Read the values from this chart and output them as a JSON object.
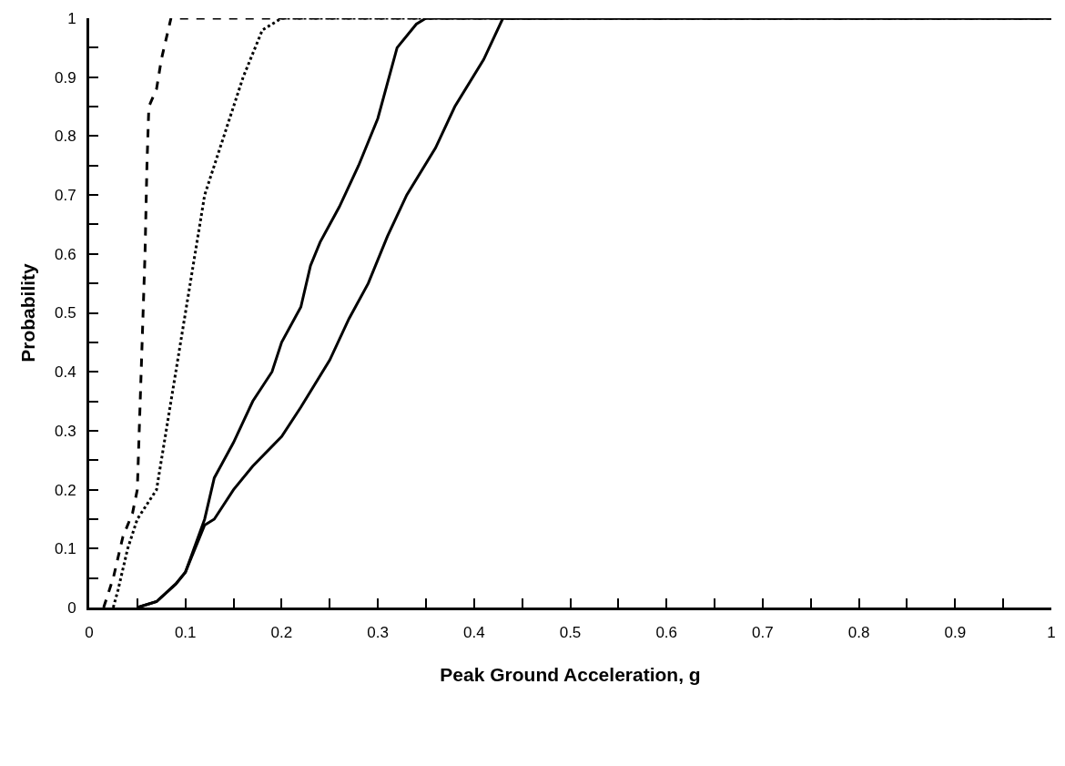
{
  "chart_data": {
    "type": "line",
    "xlabel": "Peak Ground Acceleration, g",
    "ylabel": "Probability",
    "grid": false,
    "marker": "none",
    "xlim": [
      0,
      1
    ],
    "ylim": [
      0,
      1
    ],
    "xticks": [
      0,
      {
        "value": 0.05,
        "label": null
      },
      0.1,
      {
        "value": 0.15,
        "label": null
      },
      0.2,
      {
        "value": 0.25,
        "label": null
      },
      0.3,
      {
        "value": 0.35,
        "label": null
      },
      0.4,
      {
        "value": 0.45,
        "label": null
      },
      0.5,
      {
        "value": 0.55,
        "label": null
      },
      0.6,
      {
        "value": 0.65,
        "label": null
      },
      0.7,
      {
        "value": 0.75,
        "label": null
      },
      0.8,
      {
        "value": 0.85,
        "label": null
      },
      0.9,
      {
        "value": 0.95,
        "label": null
      },
      1
    ],
    "yticks": [
      0,
      {
        "value": 0.05,
        "label": null
      },
      0.1,
      {
        "value": 0.15,
        "label": null
      },
      0.2,
      {
        "value": 0.25,
        "label": null
      },
      0.3,
      {
        "value": 0.35,
        "label": null
      },
      0.4,
      {
        "value": 0.45,
        "label": null
      },
      0.5,
      {
        "value": 0.55,
        "label": null
      },
      0.6,
      {
        "value": 0.65,
        "label": null
      },
      0.7,
      {
        "value": 0.75,
        "label": null
      },
      0.8,
      {
        "value": 0.85,
        "label": null
      },
      0.9,
      {
        "value": 0.95,
        "label": null
      },
      1
    ],
    "series": [
      {
        "color": "#000000",
        "line_style": "dashed",
        "x": [
          0.015,
          0.025,
          0.035,
          0.045,
          0.05,
          0.052,
          0.055,
          0.058,
          0.06,
          0.062,
          0.07,
          0.075,
          0.085,
          1
        ],
        "values": [
          0,
          0.05,
          0.12,
          0.16,
          0.2,
          0.3,
          0.45,
          0.6,
          0.75,
          0.85,
          0.88,
          0.93,
          1,
          1
        ]
      },
      {
        "color": "#000000",
        "line_style": "dotted",
        "x": [
          0.025,
          0.03,
          0.04,
          0.05,
          0.07,
          0.08,
          0.09,
          0.1,
          0.11,
          0.12,
          0.14,
          0.16,
          0.18,
          0.2,
          1
        ],
        "values": [
          0,
          0.03,
          0.1,
          0.15,
          0.2,
          0.3,
          0.4,
          0.5,
          0.6,
          0.7,
          0.8,
          0.9,
          0.98,
          1,
          1
        ]
      },
      {
        "color": "#000000",
        "line_style": "solid",
        "x": [
          0.05,
          0.07,
          0.09,
          0.1,
          0.12,
          0.13,
          0.15,
          0.17,
          0.19,
          0.2,
          0.22,
          0.23,
          0.24,
          0.26,
          0.28,
          0.3,
          0.32,
          0.34,
          0.35,
          1
        ],
        "values": [
          0,
          0.01,
          0.04,
          0.06,
          0.15,
          0.22,
          0.28,
          0.35,
          0.4,
          0.45,
          0.51,
          0.58,
          0.62,
          0.68,
          0.75,
          0.83,
          0.95,
          0.99,
          1,
          1
        ]
      },
      {
        "color": "#000000",
        "line_style": "solid",
        "x": [
          0.05,
          0.07,
          0.09,
          0.1,
          0.12,
          0.13,
          0.15,
          0.17,
          0.2,
          0.22,
          0.25,
          0.27,
          0.29,
          0.31,
          0.33,
          0.36,
          0.38,
          0.41,
          0.43,
          1
        ],
        "values": [
          0,
          0.01,
          0.04,
          0.06,
          0.14,
          0.15,
          0.2,
          0.24,
          0.29,
          0.34,
          0.42,
          0.49,
          0.55,
          0.63,
          0.7,
          0.78,
          0.85,
          0.93,
          1,
          1
        ]
      }
    ]
  }
}
